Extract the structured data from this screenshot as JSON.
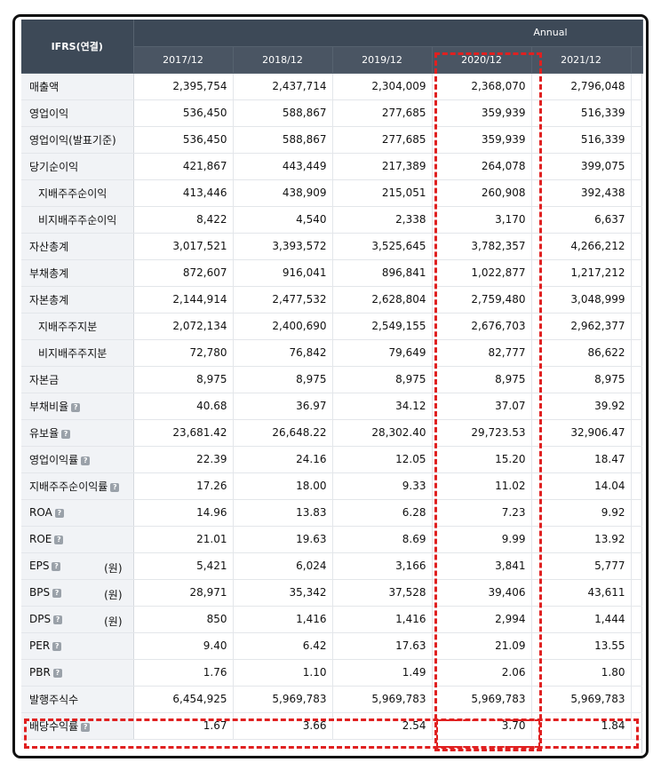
{
  "table": {
    "corner_label": "IFRS(연결)",
    "group_label": "Annual",
    "periods": [
      "2017/12",
      "2018/12",
      "2019/12",
      "2020/12",
      "2021/12"
    ],
    "rows": [
      {
        "label": "매출액",
        "help": false,
        "unit": "",
        "values": [
          "2,395,754",
          "2,437,714",
          "2,304,009",
          "2,368,070",
          "2,796,048"
        ]
      },
      {
        "label": "영업이익",
        "help": false,
        "unit": "",
        "values": [
          "536,450",
          "588,867",
          "277,685",
          "359,939",
          "516,339"
        ]
      },
      {
        "label": "영업이익(발표기준)",
        "help": false,
        "unit": "",
        "values": [
          "536,450",
          "588,867",
          "277,685",
          "359,939",
          "516,339"
        ]
      },
      {
        "label": "당기순이익",
        "help": false,
        "unit": "",
        "values": [
          "421,867",
          "443,449",
          "217,389",
          "264,078",
          "399,075"
        ]
      },
      {
        "label": "지배주주순이익",
        "help": false,
        "unit": "",
        "sub": true,
        "values": [
          "413,446",
          "438,909",
          "215,051",
          "260,908",
          "392,438"
        ]
      },
      {
        "label": "비지배주주순이익",
        "help": false,
        "unit": "",
        "sub": true,
        "values": [
          "8,422",
          "4,540",
          "2,338",
          "3,170",
          "6,637"
        ]
      },
      {
        "label": "자산총계",
        "help": false,
        "unit": "",
        "values": [
          "3,017,521",
          "3,393,572",
          "3,525,645",
          "3,782,357",
          "4,266,212"
        ]
      },
      {
        "label": "부채총계",
        "help": false,
        "unit": "",
        "values": [
          "872,607",
          "916,041",
          "896,841",
          "1,022,877",
          "1,217,212"
        ]
      },
      {
        "label": "자본총계",
        "help": false,
        "unit": "",
        "values": [
          "2,144,914",
          "2,477,532",
          "2,628,804",
          "2,759,480",
          "3,048,999"
        ]
      },
      {
        "label": "지배주주지분",
        "help": false,
        "unit": "",
        "sub": true,
        "values": [
          "2,072,134",
          "2,400,690",
          "2,549,155",
          "2,676,703",
          "2,962,377"
        ]
      },
      {
        "label": "비지배주주지분",
        "help": false,
        "unit": "",
        "sub": true,
        "values": [
          "72,780",
          "76,842",
          "79,649",
          "82,777",
          "86,622"
        ]
      },
      {
        "label": "자본금",
        "help": false,
        "unit": "",
        "values": [
          "8,975",
          "8,975",
          "8,975",
          "8,975",
          "8,975"
        ]
      },
      {
        "label": "부채비율",
        "help": true,
        "unit": "",
        "values": [
          "40.68",
          "36.97",
          "34.12",
          "37.07",
          "39.92"
        ]
      },
      {
        "label": "유보율",
        "help": true,
        "unit": "",
        "values": [
          "23,681.42",
          "26,648.22",
          "28,302.40",
          "29,723.53",
          "32,906.47"
        ]
      },
      {
        "label": "영업이익률",
        "help": true,
        "unit": "",
        "values": [
          "22.39",
          "24.16",
          "12.05",
          "15.20",
          "18.47"
        ]
      },
      {
        "label": "지배주주순이익률",
        "help": true,
        "unit": "",
        "values": [
          "17.26",
          "18.00",
          "9.33",
          "11.02",
          "14.04"
        ]
      },
      {
        "label": "ROA",
        "help": true,
        "unit": "",
        "values": [
          "14.96",
          "13.83",
          "6.28",
          "7.23",
          "9.92"
        ]
      },
      {
        "label": "ROE",
        "help": true,
        "unit": "",
        "values": [
          "21.01",
          "19.63",
          "8.69",
          "9.99",
          "13.92"
        ]
      },
      {
        "label": "EPS",
        "help": true,
        "unit": "(원)",
        "values": [
          "5,421",
          "6,024",
          "3,166",
          "3,841",
          "5,777"
        ]
      },
      {
        "label": "BPS",
        "help": true,
        "unit": "(원)",
        "values": [
          "28,971",
          "35,342",
          "37,528",
          "39,406",
          "43,611"
        ]
      },
      {
        "label": "DPS",
        "help": true,
        "unit": "(원)",
        "values": [
          "850",
          "1,416",
          "1,416",
          "2,994",
          "1,444"
        ]
      },
      {
        "label": "PER",
        "help": true,
        "unit": "",
        "values": [
          "9.40",
          "6.42",
          "17.63",
          "21.09",
          "13.55"
        ]
      },
      {
        "label": "PBR",
        "help": true,
        "unit": "",
        "values": [
          "1.76",
          "1.10",
          "1.49",
          "2.06",
          "1.80"
        ]
      },
      {
        "label": "발행주식수",
        "help": false,
        "unit": "",
        "values": [
          "6,454,925",
          "5,969,783",
          "5,969,783",
          "5,969,783",
          "5,969,783"
        ]
      },
      {
        "label": "배당수익률",
        "help": true,
        "unit": "",
        "values": [
          "1.67",
          "3.66",
          "2.54",
          "3.70",
          "1.84"
        ]
      }
    ]
  },
  "help_glyph": "?",
  "colors": {
    "header_bg": "#3d4957",
    "label_bg": "#f1f3f6",
    "highlight": "#e02020"
  }
}
